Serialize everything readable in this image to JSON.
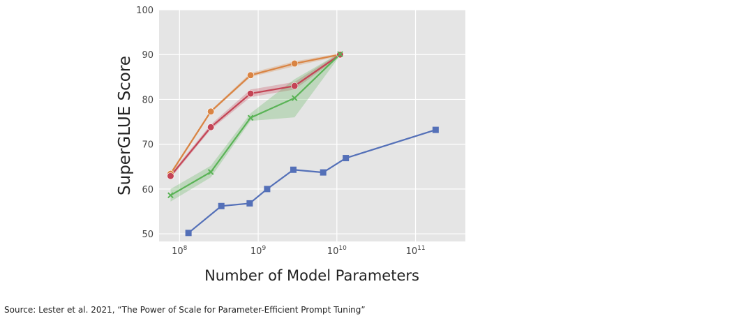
{
  "chart_data": {
    "type": "line",
    "x_scale": "log",
    "xlabel": "Number of Model Parameters",
    "ylabel": "SuperGLUE Score",
    "xlim": [
      55000000,
      430000000000
    ],
    "ylim": [
      48.3,
      100
    ],
    "x_ticks": [
      {
        "value": 100000000,
        "base": "10",
        "exp": "8"
      },
      {
        "value": 1000000000,
        "base": "10",
        "exp": "9"
      },
      {
        "value": 10000000000,
        "base": "10",
        "exp": "10"
      },
      {
        "value": 100000000000,
        "base": "10",
        "exp": "11"
      }
    ],
    "y_ticks": [
      "50",
      "60",
      "70",
      "80",
      "90",
      "100"
    ],
    "grid": true,
    "background": "#e5e5e5",
    "series": [
      {
        "color": "#5470b8",
        "marker": "square",
        "points": [
          {
            "x": 130000000,
            "y": 50.2
          },
          {
            "x": 340000000,
            "y": 56.2
          },
          {
            "x": 780000000,
            "y": 56.8
          },
          {
            "x": 1300000000,
            "y": 60.0
          },
          {
            "x": 2800000000,
            "y": 64.3
          },
          {
            "x": 6700000000,
            "y": 63.7
          },
          {
            "x": 13000000000,
            "y": 66.9
          },
          {
            "x": 180000000000,
            "y": 73.2
          }
        ]
      },
      {
        "color": "#d98443",
        "marker": "circle",
        "points": [
          {
            "x": 77000000,
            "y": 63.4,
            "lo": 63.0,
            "hi": 63.8
          },
          {
            "x": 250000000,
            "y": 77.3,
            "lo": 77.0,
            "hi": 77.6
          },
          {
            "x": 800000000,
            "y": 85.4,
            "lo": 85.0,
            "hi": 85.9
          },
          {
            "x": 2900000000,
            "y": 88.0,
            "lo": 87.4,
            "hi": 88.5
          },
          {
            "x": 11000000000,
            "y": 90.0,
            "lo": 89.7,
            "hi": 90.3
          }
        ]
      },
      {
        "color": "#c44455",
        "marker": "circle",
        "points": [
          {
            "x": 77000000,
            "y": 62.9,
            "lo": 62.4,
            "hi": 63.4
          },
          {
            "x": 250000000,
            "y": 73.8,
            "lo": 73.3,
            "hi": 74.4
          },
          {
            "x": 800000000,
            "y": 81.3,
            "lo": 80.5,
            "hi": 82.2
          },
          {
            "x": 2900000000,
            "y": 83.0,
            "lo": 82.2,
            "hi": 83.9
          },
          {
            "x": 11000000000,
            "y": 90.0,
            "lo": 89.6,
            "hi": 90.4
          }
        ]
      },
      {
        "color": "#5ab356",
        "marker": "x",
        "points": [
          {
            "x": 77000000,
            "y": 58.6,
            "lo": 57.2,
            "hi": 60.0
          },
          {
            "x": 250000000,
            "y": 63.8,
            "lo": 62.6,
            "hi": 65.2
          },
          {
            "x": 800000000,
            "y": 75.9,
            "lo": 75.2,
            "hi": 76.9
          },
          {
            "x": 2900000000,
            "y": 80.3,
            "lo": 76.0,
            "hi": 84.5
          },
          {
            "x": 11000000000,
            "y": 90.1,
            "lo": 89.8,
            "hi": 90.4
          }
        ]
      }
    ]
  },
  "source": "Source:  Lester et al. 2021, “The Power of Scale for Parameter-Efficient Prompt Tuning”"
}
